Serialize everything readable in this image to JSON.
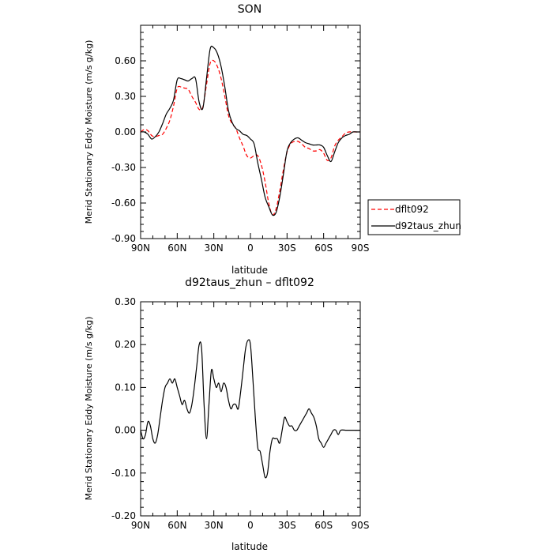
{
  "chart_data": [
    {
      "type": "line",
      "title": "SON",
      "xlabel": "latitude",
      "ylabel": "Merid Stationary Eddy Moisture (m/s g/kg)",
      "xlim": [
        90,
        -90
      ],
      "ylim": [
        -0.9,
        0.9
      ],
      "xticks": [
        90,
        60,
        30,
        0,
        -30,
        -60,
        -90
      ],
      "xtick_labels": [
        "90N",
        "60N",
        "30N",
        "0",
        "30S",
        "60S",
        "90S"
      ],
      "yticks": [
        -0.9,
        -0.6,
        -0.3,
        0.0,
        0.3,
        0.6
      ],
      "ytick_labels": [
        "-0.90",
        "-0.60",
        "-0.30",
        "0.00",
        "0.30",
        "0.60"
      ],
      "legend": "outside-right",
      "series": [
        {
          "name": "dflt092",
          "color": "#ff0000",
          "dash": "dashed",
          "points": [
            [
              90,
              0.0
            ],
            [
              87,
              0.02
            ],
            [
              84,
              0.01
            ],
            [
              81,
              -0.03
            ],
            [
              78,
              -0.04
            ],
            [
              75,
              -0.03
            ],
            [
              72,
              -0.02
            ],
            [
              69,
              0.03
            ],
            [
              66,
              0.1
            ],
            [
              63,
              0.22
            ],
            [
              60,
              0.37
            ],
            [
              57,
              0.38
            ],
            [
              54,
              0.37
            ],
            [
              51,
              0.36
            ],
            [
              48,
              0.3
            ],
            [
              45,
              0.25
            ],
            [
              42,
              0.19
            ],
            [
              39,
              0.21
            ],
            [
              36,
              0.4
            ],
            [
              33,
              0.58
            ],
            [
              30,
              0.6
            ],
            [
              27,
              0.55
            ],
            [
              24,
              0.45
            ],
            [
              21,
              0.3
            ],
            [
              18,
              0.14
            ],
            [
              15,
              0.07
            ],
            [
              12,
              0.03
            ],
            [
              9,
              -0.05
            ],
            [
              6,
              -0.12
            ],
            [
              3,
              -0.2
            ],
            [
              0,
              -0.22
            ],
            [
              -3,
              -0.2
            ],
            [
              -6,
              -0.2
            ],
            [
              -9,
              -0.28
            ],
            [
              -12,
              -0.42
            ],
            [
              -15,
              -0.6
            ],
            [
              -18,
              -0.7
            ],
            [
              -21,
              -0.65
            ],
            [
              -24,
              -0.5
            ],
            [
              -27,
              -0.32
            ],
            [
              -30,
              -0.17
            ],
            [
              -33,
              -0.1
            ],
            [
              -36,
              -0.08
            ],
            [
              -39,
              -0.08
            ],
            [
              -42,
              -0.1
            ],
            [
              -45,
              -0.13
            ],
            [
              -48,
              -0.14
            ],
            [
              -51,
              -0.16
            ],
            [
              -54,
              -0.16
            ],
            [
              -57,
              -0.15
            ],
            [
              -60,
              -0.18
            ],
            [
              -63,
              -0.24
            ],
            [
              -66,
              -0.22
            ],
            [
              -69,
              -0.12
            ],
            [
              -72,
              -0.07
            ],
            [
              -75,
              -0.04
            ],
            [
              -78,
              -0.01
            ],
            [
              -81,
              0.0
            ],
            [
              -84,
              0.0
            ],
            [
              -87,
              0.0
            ],
            [
              -90,
              0.0
            ]
          ]
        },
        {
          "name": "d92taus_zhun",
          "color": "#000000",
          "dash": "solid",
          "points": [
            [
              90,
              0.0
            ],
            [
              87,
              0.0
            ],
            [
              84,
              -0.02
            ],
            [
              81,
              -0.06
            ],
            [
              78,
              -0.04
            ],
            [
              75,
              0.0
            ],
            [
              72,
              0.07
            ],
            [
              69,
              0.15
            ],
            [
              66,
              0.2
            ],
            [
              63,
              0.27
            ],
            [
              60,
              0.44
            ],
            [
              57,
              0.45
            ],
            [
              54,
              0.44
            ],
            [
              51,
              0.43
            ],
            [
              48,
              0.45
            ],
            [
              45,
              0.45
            ],
            [
              42,
              0.25
            ],
            [
              39,
              0.2
            ],
            [
              36,
              0.45
            ],
            [
              33,
              0.7
            ],
            [
              30,
              0.71
            ],
            [
              27,
              0.66
            ],
            [
              24,
              0.55
            ],
            [
              21,
              0.38
            ],
            [
              18,
              0.18
            ],
            [
              15,
              0.08
            ],
            [
              12,
              0.03
            ],
            [
              9,
              0.01
            ],
            [
              6,
              -0.02
            ],
            [
              3,
              -0.03
            ],
            [
              0,
              -0.06
            ],
            [
              -3,
              -0.1
            ],
            [
              -6,
              -0.26
            ],
            [
              -9,
              -0.4
            ],
            [
              -12,
              -0.55
            ],
            [
              -15,
              -0.63
            ],
            [
              -18,
              -0.7
            ],
            [
              -21,
              -0.68
            ],
            [
              -24,
              -0.55
            ],
            [
              -27,
              -0.36
            ],
            [
              -30,
              -0.16
            ],
            [
              -33,
              -0.09
            ],
            [
              -36,
              -0.06
            ],
            [
              -39,
              -0.05
            ],
            [
              -42,
              -0.07
            ],
            [
              -45,
              -0.09
            ],
            [
              -48,
              -0.1
            ],
            [
              -51,
              -0.11
            ],
            [
              -54,
              -0.11
            ],
            [
              -57,
              -0.11
            ],
            [
              -60,
              -0.13
            ],
            [
              -63,
              -0.2
            ],
            [
              -66,
              -0.25
            ],
            [
              -69,
              -0.17
            ],
            [
              -72,
              -0.09
            ],
            [
              -75,
              -0.05
            ],
            [
              -78,
              -0.03
            ],
            [
              -81,
              -0.02
            ],
            [
              -84,
              0.0
            ],
            [
              -87,
              0.0
            ],
            [
              -90,
              0.0
            ]
          ]
        }
      ]
    },
    {
      "type": "line",
      "title": "d92taus_zhun – dflt092",
      "xlabel": "latitude",
      "ylabel": "Merid Stationary Eddy Moisture (m/s g/kg)",
      "xlim": [
        90,
        -90
      ],
      "ylim": [
        -0.2,
        0.3
      ],
      "xticks": [
        90,
        60,
        30,
        0,
        -30,
        -60,
        -90
      ],
      "xtick_labels": [
        "90N",
        "60N",
        "30N",
        "0",
        "30S",
        "60S",
        "90S"
      ],
      "yticks": [
        -0.2,
        -0.1,
        0.0,
        0.1,
        0.2,
        0.3
      ],
      "ytick_labels": [
        "-0.20",
        "-0.10",
        "0.00",
        "0.10",
        "0.20",
        "0.30"
      ],
      "series": [
        {
          "color": "#000000",
          "dash": "solid",
          "points": [
            [
              90,
              0.0
            ],
            [
              88,
              -0.02
            ],
            [
              86,
              -0.01
            ],
            [
              84,
              0.02
            ],
            [
              82,
              0.01
            ],
            [
              80,
              -0.02
            ],
            [
              78,
              -0.03
            ],
            [
              76,
              -0.01
            ],
            [
              74,
              0.03
            ],
            [
              72,
              0.07
            ],
            [
              70,
              0.1
            ],
            [
              68,
              0.11
            ],
            [
              66,
              0.12
            ],
            [
              64,
              0.11
            ],
            [
              62,
              0.12
            ],
            [
              60,
              0.1
            ],
            [
              58,
              0.08
            ],
            [
              56,
              0.06
            ],
            [
              54,
              0.07
            ],
            [
              52,
              0.05
            ],
            [
              50,
              0.04
            ],
            [
              48,
              0.06
            ],
            [
              46,
              0.1
            ],
            [
              44,
              0.15
            ],
            [
              42,
              0.2
            ],
            [
              40,
              0.19
            ],
            [
              38,
              0.06
            ],
            [
              36,
              -0.02
            ],
            [
              34,
              0.06
            ],
            [
              32,
              0.14
            ],
            [
              30,
              0.12
            ],
            [
              28,
              0.1
            ],
            [
              26,
              0.11
            ],
            [
              24,
              0.09
            ],
            [
              22,
              0.11
            ],
            [
              20,
              0.1
            ],
            [
              18,
              0.07
            ],
            [
              16,
              0.05
            ],
            [
              14,
              0.06
            ],
            [
              12,
              0.06
            ],
            [
              10,
              0.05
            ],
            [
              8,
              0.09
            ],
            [
              6,
              0.14
            ],
            [
              4,
              0.19
            ],
            [
              2,
              0.21
            ],
            [
              0,
              0.2
            ],
            [
              -2,
              0.12
            ],
            [
              -4,
              0.03
            ],
            [
              -6,
              -0.04
            ],
            [
              -8,
              -0.05
            ],
            [
              -10,
              -0.08
            ],
            [
              -12,
              -0.11
            ],
            [
              -14,
              -0.1
            ],
            [
              -16,
              -0.05
            ],
            [
              -18,
              -0.02
            ],
            [
              -20,
              -0.02
            ],
            [
              -22,
              -0.02
            ],
            [
              -24,
              -0.03
            ],
            [
              -26,
              0.0
            ],
            [
              -28,
              0.03
            ],
            [
              -30,
              0.02
            ],
            [
              -32,
              0.01
            ],
            [
              -34,
              0.01
            ],
            [
              -36,
              0.0
            ],
            [
              -38,
              0.0
            ],
            [
              -40,
              0.01
            ],
            [
              -42,
              0.02
            ],
            [
              -44,
              0.03
            ],
            [
              -46,
              0.04
            ],
            [
              -48,
              0.05
            ],
            [
              -50,
              0.04
            ],
            [
              -52,
              0.03
            ],
            [
              -54,
              0.01
            ],
            [
              -56,
              -0.02
            ],
            [
              -58,
              -0.03
            ],
            [
              -60,
              -0.04
            ],
            [
              -62,
              -0.03
            ],
            [
              -64,
              -0.02
            ],
            [
              -66,
              -0.01
            ],
            [
              -68,
              0.0
            ],
            [
              -70,
              0.0
            ],
            [
              -72,
              -0.01
            ],
            [
              -74,
              0.0
            ],
            [
              -78,
              0.0
            ],
            [
              -82,
              0.0
            ],
            [
              -86,
              0.0
            ],
            [
              -90,
              0.0
            ]
          ]
        }
      ]
    }
  ]
}
